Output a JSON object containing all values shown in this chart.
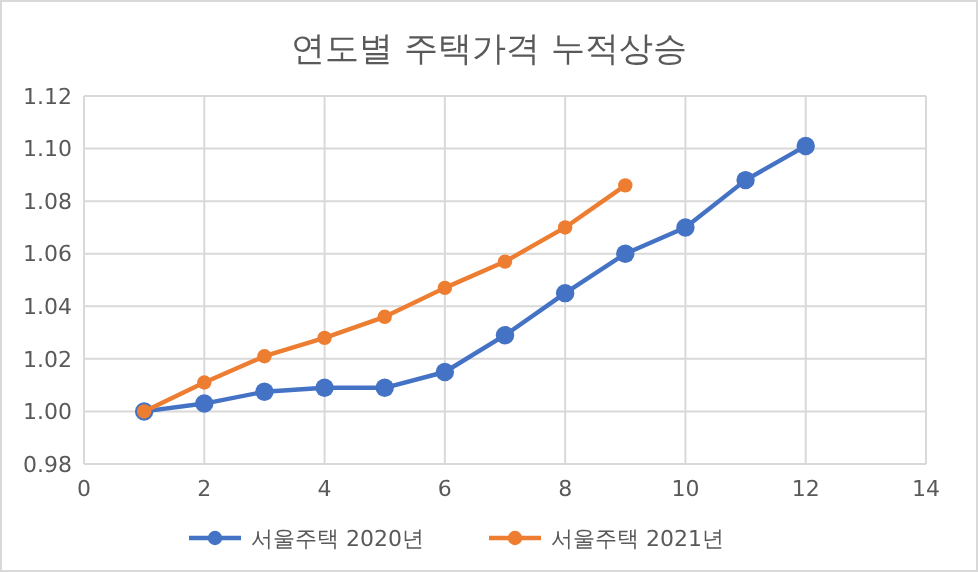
{
  "chart_data": {
    "type": "line",
    "title": "연도별 주택가격 누적상승",
    "x": [
      1,
      2,
      3,
      4,
      5,
      6,
      7,
      8,
      9,
      10,
      11,
      12
    ],
    "series": [
      {
        "name": "서울주택 2020년",
        "color": "#4472c4",
        "values": [
          1.0,
          1.003,
          1.0075,
          1.009,
          1.009,
          1.015,
          1.029,
          1.045,
          1.06,
          1.07,
          1.088,
          1.101
        ]
      },
      {
        "name": "서울주택 2021년",
        "color": "#ed7d31",
        "values": [
          1.0,
          1.011,
          1.021,
          1.028,
          1.036,
          1.047,
          1.057,
          1.07,
          1.086,
          null,
          null,
          null
        ]
      }
    ],
    "xlim": [
      0,
      14
    ],
    "xticks": [
      0,
      2,
      4,
      6,
      8,
      10,
      12,
      14
    ],
    "ylim": [
      0.98,
      1.12
    ],
    "yticks": [
      {
        "value": 0.98,
        "label": "0.98"
      },
      {
        "value": 1.0,
        "label": "1.00"
      },
      {
        "value": 1.02,
        "label": "1.02"
      },
      {
        "value": 1.04,
        "label": "1.04"
      },
      {
        "value": 1.06,
        "label": "1.06"
      },
      {
        "value": 1.08,
        "label": "1.08"
      },
      {
        "value": 1.1,
        "label": "1.10"
      },
      {
        "value": 1.12,
        "label": "1.12"
      }
    ],
    "grid": true,
    "legend": "bottom",
    "marker": "circle",
    "line_style": "solid"
  }
}
